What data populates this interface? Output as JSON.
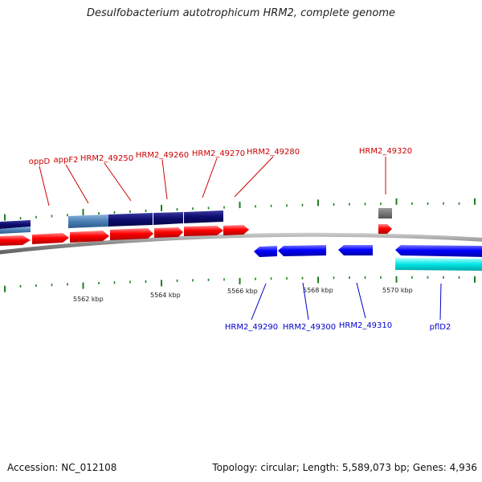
{
  "title": "Desulfobacterium autotrophicum HRM2, complete genome",
  "footer": {
    "accession": "Accession: NC_012108",
    "summary": "Topology: circular; Length: 5,589,073 bp; Genes: 4,936"
  },
  "scale_labels": [
    "5562 kbp",
    "5564 kbp",
    "5566 kbp",
    "5568 kbp",
    "5570 kbp"
  ],
  "forward_genes": [
    "oppD",
    "appF2",
    "HRM2_49250",
    "HRM2_49260",
    "HRM2_49270",
    "HRM2_49280",
    "HRM2_49320"
  ],
  "reverse_genes": [
    "HRM2_49290",
    "HRM2_49300",
    "HRM2_49310",
    "pflD2"
  ],
  "colors": {
    "forward_label": "#cc0000",
    "reverse_label": "#0000cc",
    "forward_gene": "#ff0000",
    "reverse_gene": "#0000ff",
    "cds_dark": "#0c0c6e",
    "cds_light": "#4a7fb5",
    "cds_cyan": "#00e5e5",
    "tick": "#1f7f1f",
    "backbone": "#888888"
  }
}
